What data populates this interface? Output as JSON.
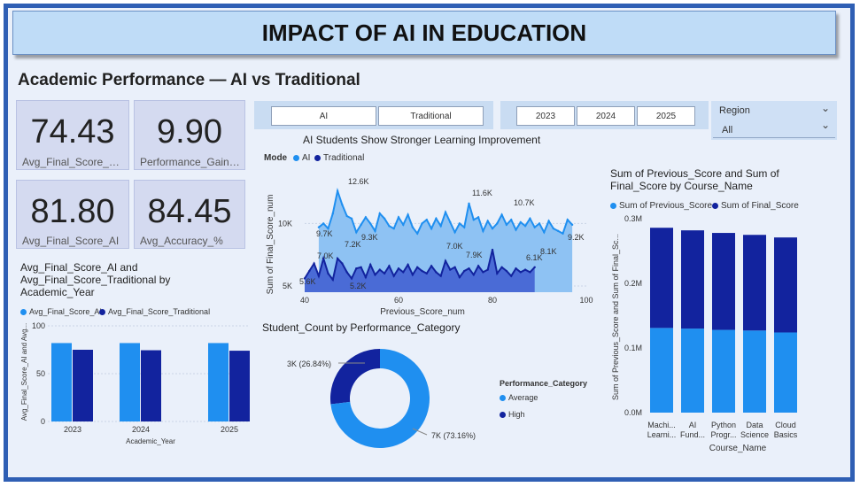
{
  "header": {
    "title": "IMPACT OF AI IN EDUCATION"
  },
  "subtitle": "Academic Performance — AI vs Traditional",
  "kpis": [
    {
      "value": "74.43",
      "label": "Avg_Final_Score_Tra..."
    },
    {
      "value": "9.90",
      "label": "Performance_Gain_%"
    },
    {
      "value": "81.80",
      "label": "Avg_Final_Score_AI"
    },
    {
      "value": "84.45",
      "label": "Avg_Accuracy_%"
    }
  ],
  "slicers": {
    "mode": [
      "AI",
      "Traditional"
    ],
    "years": [
      "2023",
      "2024",
      "2025"
    ],
    "region": {
      "label": "Region",
      "value": "All"
    }
  },
  "colors": {
    "light": "#1f8ff0",
    "dark": "#12239e",
    "area_light": "#8ec2f3",
    "area_dark": "#4a6bd6"
  },
  "line_chart": {
    "title": "AI Students Show Stronger Learning Improvement",
    "legend_title": "Mode",
    "legend": [
      "AI",
      "Traditional"
    ],
    "xlabel": "Previous_Score_num",
    "ylabel": "Sum of Final_Score_num",
    "xticks": [
      "40",
      "60",
      "80",
      "100"
    ],
    "yticks": [
      "5K",
      "10K"
    ],
    "labels": [
      "12.6K",
      "11.6K",
      "10.7K",
      "9.7K",
      "9.3K",
      "9.2K",
      "8.1K",
      "7.9K",
      "7.2K",
      "7.0K",
      "7.0K",
      "6.1K",
      "5.6K",
      "5.2K"
    ]
  },
  "bar_chart": {
    "title_lines": [
      "Avg_Final_Score_AI and",
      "Avg_Final_Score_Traditional by",
      "Academic_Year"
    ],
    "legend": [
      "Avg_Final_Score_AI",
      "Avg_Final_Score_Traditional"
    ],
    "xlabel": "Academic_Year",
    "ylabel": "Avg_Final_Score_AI and Avg...",
    "yticks": [
      "0",
      "50",
      "100"
    ]
  },
  "donut": {
    "title": "Student_Count by Performance_Category",
    "legend_title": "Performance_Category",
    "legend": [
      "Average",
      "High"
    ],
    "label_high": "3K (26.84%)",
    "label_avg": "7K (73.16%)"
  },
  "stacked": {
    "title_lines": [
      "Sum of Previous_Score and Sum of",
      "Final_Score by Course_Name"
    ],
    "legend": [
      "Sum of Previous_Score",
      "Sum of Final_Score"
    ],
    "xlabel": "Course_Name",
    "ylabel": "Sum of Previous_Score and Sum of Final_Sc...",
    "yticks": [
      "0.0M",
      "0.1M",
      "0.2M",
      "0.3M"
    ]
  },
  "chart_data": [
    {
      "type": "line",
      "title": "AI Students Show Stronger Learning Improvement",
      "xlabel": "Previous_Score_num",
      "ylabel": "Sum of Final_Score_num",
      "xlim": [
        40,
        100
      ],
      "ylim": [
        4500,
        14000
      ],
      "series": [
        {
          "name": "AI",
          "x": [
            43,
            44,
            45,
            46,
            47,
            48,
            49,
            50,
            51,
            52,
            53,
            54,
            55,
            56,
            57,
            58,
            59,
            60,
            61,
            62,
            63,
            64,
            65,
            66,
            67,
            68,
            69,
            70,
            71,
            72,
            73,
            74,
            75,
            76,
            77,
            78,
            79,
            80,
            81,
            82,
            83,
            84,
            85,
            86,
            87,
            88,
            89,
            90,
            91,
            92,
            93,
            94,
            95,
            96,
            97
          ],
          "y": [
            9700,
            10000,
            9600,
            10800,
            12600,
            11500,
            10600,
            10400,
            9300,
            9900,
            10500,
            10000,
            9400,
            10800,
            10400,
            9800,
            9600,
            10500,
            9900,
            10700,
            9700,
            9200,
            10000,
            10300,
            9600,
            10400,
            9800,
            10900,
            10100,
            9300,
            10000,
            9700,
            11600,
            10300,
            10500,
            9400,
            10200,
            9600,
            10000,
            10700,
            9900,
            10300,
            9500,
            10100,
            9800,
            10400,
            9700,
            10000,
            9300,
            10200,
            9600,
            9400,
            9200,
            10300,
            9900
          ]
        },
        {
          "name": "Traditional",
          "x": [
            40,
            41,
            42,
            43,
            44,
            45,
            46,
            47,
            48,
            49,
            50,
            51,
            52,
            53,
            54,
            55,
            56,
            57,
            58,
            59,
            60,
            61,
            62,
            63,
            64,
            65,
            66,
            67,
            68,
            69,
            70,
            71,
            72,
            73,
            74,
            75,
            76,
            77,
            78,
            79,
            80,
            81,
            82,
            83,
            84,
            85,
            86,
            87,
            88,
            89
          ],
          "y": [
            5600,
            6200,
            6800,
            5800,
            7200,
            6000,
            5500,
            7200,
            6800,
            6100,
            5600,
            6400,
            6500,
            5700,
            6700,
            5900,
            6300,
            6000,
            6600,
            5800,
            6400,
            6100,
            6700,
            5900,
            6500,
            6200,
            6000,
            6600,
            6100,
            5800,
            7000,
            6300,
            6500,
            5700,
            6200,
            6400,
            5900,
            6600,
            6100,
            6300,
            7900,
            6000,
            6500,
            6200,
            5800,
            6400,
            6100,
            6300,
            6100,
            6500
          ]
        }
      ]
    },
    {
      "type": "bar",
      "title": "Avg_Final_Score_AI and Avg_Final_Score_Traditional by Academic_Year",
      "xlabel": "Academic_Year",
      "ylabel": "Avg_Final_Score_AI and Avg...",
      "ylim": [
        0,
        100
      ],
      "categories": [
        "2023",
        "2024",
        "2025"
      ],
      "series": [
        {
          "name": "Avg_Final_Score_AI",
          "values": [
            82,
            82,
            82
          ]
        },
        {
          "name": "Avg_Final_Score_Traditional",
          "values": [
            75,
            74.5,
            74
          ]
        }
      ]
    },
    {
      "type": "pie",
      "title": "Student_Count by Performance_Category",
      "labels": [
        "Average",
        "High"
      ],
      "values": [
        73.16,
        26.84
      ]
    },
    {
      "type": "bar",
      "title": "Sum of Previous_Score and Sum of Final_Score by Course_Name",
      "xlabel": "Course_Name",
      "ylim": [
        0,
        0.3
      ],
      "categories": [
        [
          "Machi...",
          "Learni..."
        ],
        [
          "AI",
          "Fund..."
        ],
        [
          "Python",
          "Progr..."
        ],
        [
          "Data",
          "Science"
        ],
        [
          "Cloud",
          "Basics"
        ]
      ],
      "series": [
        {
          "name": "Sum of Previous_Score",
          "values": [
            0.131,
            0.13,
            0.128,
            0.127,
            0.124
          ]
        },
        {
          "name": "Sum of Final_Score",
          "values": [
            0.155,
            0.152,
            0.15,
            0.148,
            0.147
          ]
        }
      ]
    }
  ]
}
